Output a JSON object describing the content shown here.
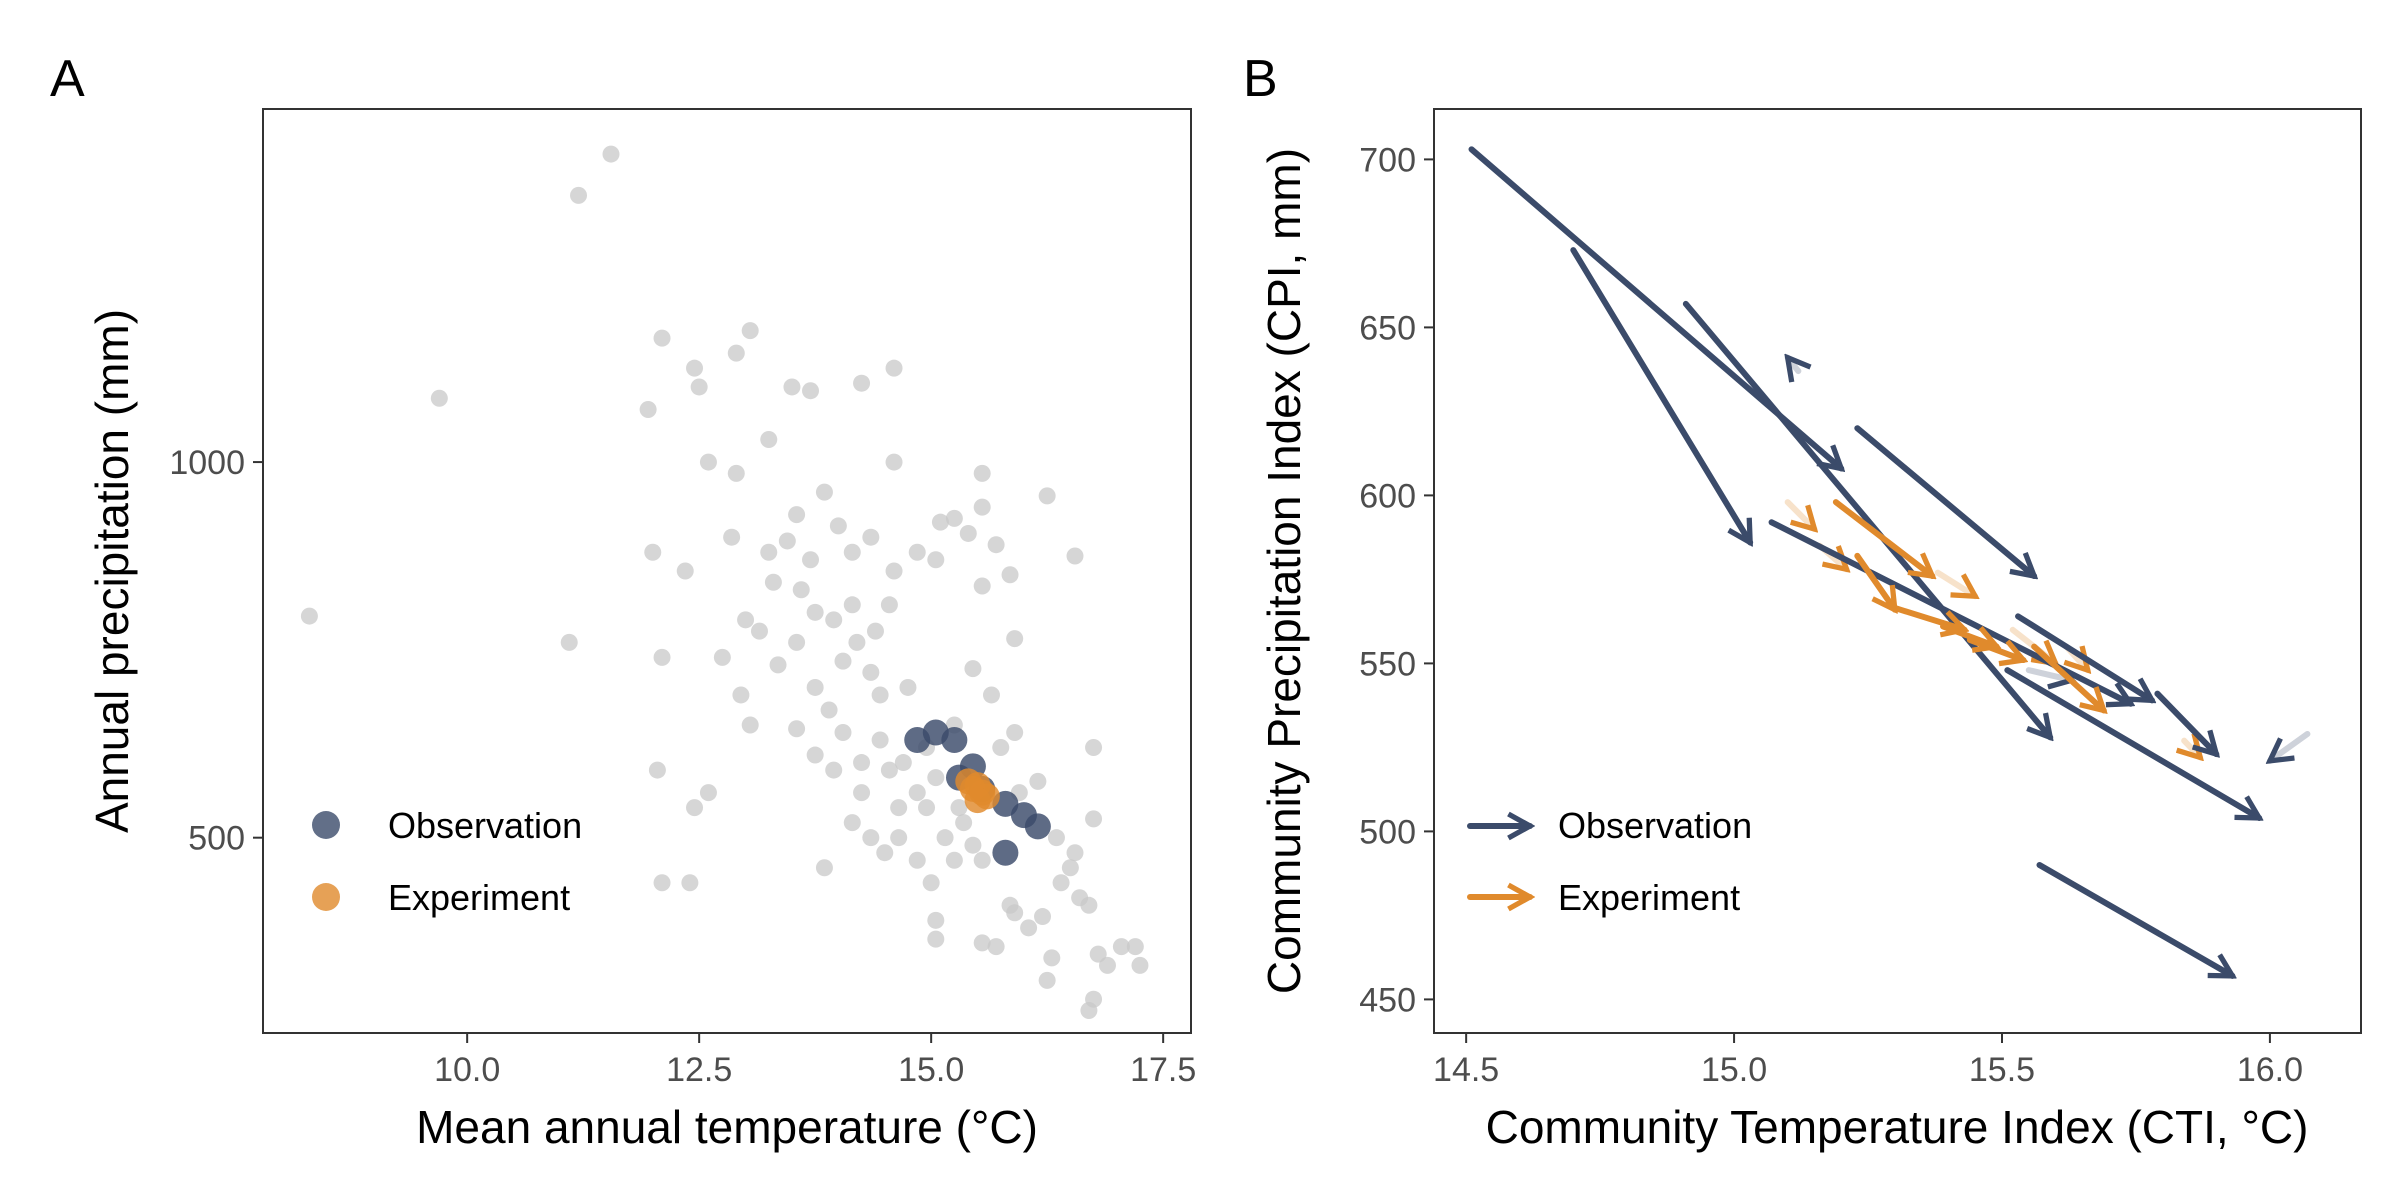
{
  "colors": {
    "observation": "#3B4B6A",
    "experiment": "#E08A2C",
    "background_points": "#C8C8C8"
  },
  "chart_data": [
    {
      "panel": "A",
      "type": "scatter",
      "xlabel": "Mean annual temperature (°C)",
      "ylabel": "Annual precipitation (mm)",
      "xlim": [
        7.8,
        17.8
      ],
      "ylim": [
        240,
        1470
      ],
      "x_ticks": [
        10.0,
        12.5,
        15.0,
        17.5
      ],
      "x_tick_labels": [
        "10.0",
        "12.5",
        "15.0",
        "17.5"
      ],
      "y_ticks": [
        500,
        1000
      ],
      "y_tick_labels": [
        "500",
        "1000"
      ],
      "grid": false,
      "legend": {
        "position": "bottom-left",
        "entries": [
          {
            "label": "Observation",
            "key": "observation"
          },
          {
            "label": "Experiment",
            "key": "experiment"
          }
        ]
      },
      "background_points": [
        [
          8.3,
          795
        ],
        [
          9.7,
          1085
        ],
        [
          11.2,
          1355
        ],
        [
          11.55,
          1410
        ],
        [
          11.1,
          760
        ],
        [
          11.95,
          1070
        ],
        [
          12.1,
          1165
        ],
        [
          12.45,
          1125
        ],
        [
          12.5,
          1100
        ],
        [
          12.9,
          1145
        ],
        [
          13.05,
          1175
        ],
        [
          13.25,
          1030
        ],
        [
          13.5,
          1100
        ],
        [
          13.7,
          1095
        ],
        [
          14.25,
          1105
        ],
        [
          14.6,
          1125
        ],
        [
          12.0,
          880
        ],
        [
          12.35,
          855
        ],
        [
          12.6,
          1000
        ],
        [
          12.9,
          985
        ],
        [
          12.1,
          740
        ],
        [
          12.05,
          590
        ],
        [
          12.1,
          440
        ],
        [
          12.4,
          440
        ],
        [
          12.45,
          540
        ],
        [
          12.6,
          560
        ],
        [
          12.95,
          690
        ],
        [
          13.05,
          650
        ],
        [
          13.15,
          775
        ],
        [
          13.3,
          840
        ],
        [
          13.45,
          895
        ],
        [
          13.55,
          930
        ],
        [
          13.7,
          870
        ],
        [
          13.85,
          960
        ],
        [
          14.0,
          915
        ],
        [
          14.15,
          880
        ],
        [
          14.35,
          900
        ],
        [
          14.6,
          1000
        ],
        [
          14.6,
          855
        ],
        [
          14.85,
          880
        ],
        [
          13.35,
          730
        ],
        [
          13.55,
          760
        ],
        [
          13.75,
          800
        ],
        [
          13.95,
          790
        ],
        [
          14.2,
          760
        ],
        [
          14.35,
          720
        ],
        [
          14.45,
          690
        ],
        [
          13.55,
          645
        ],
        [
          13.75,
          610
        ],
        [
          13.9,
          670
        ],
        [
          13.95,
          590
        ],
        [
          14.05,
          640
        ],
        [
          14.25,
          600
        ],
        [
          14.25,
          560
        ],
        [
          14.45,
          630
        ],
        [
          14.55,
          590
        ],
        [
          14.65,
          540
        ],
        [
          14.7,
          600
        ],
        [
          14.85,
          560
        ],
        [
          14.95,
          540
        ],
        [
          14.95,
          620
        ],
        [
          15.05,
          580
        ],
        [
          14.85,
          470
        ],
        [
          15.0,
          440
        ],
        [
          15.05,
          390
        ],
        [
          15.05,
          365
        ],
        [
          15.15,
          500
        ],
        [
          15.25,
          470
        ],
        [
          15.3,
          540
        ],
        [
          15.35,
          520
        ],
        [
          15.45,
          490
        ],
        [
          15.55,
          470
        ],
        [
          15.55,
          360
        ],
        [
          15.7,
          355
        ],
        [
          15.85,
          410
        ],
        [
          15.9,
          400
        ],
        [
          16.05,
          380
        ],
        [
          16.2,
          395
        ],
        [
          16.3,
          340
        ],
        [
          16.25,
          310
        ],
        [
          16.4,
          440
        ],
        [
          16.5,
          460
        ],
        [
          16.6,
          420
        ],
        [
          16.7,
          410
        ],
        [
          16.8,
          345
        ],
        [
          16.75,
          285
        ],
        [
          16.7,
          270
        ],
        [
          16.9,
          330
        ],
        [
          17.05,
          355
        ],
        [
          17.25,
          330
        ],
        [
          17.2,
          355
        ],
        [
          16.75,
          620
        ],
        [
          16.75,
          525
        ],
        [
          16.55,
          480
        ],
        [
          16.35,
          500
        ],
        [
          16.15,
          575
        ],
        [
          15.95,
          560
        ],
        [
          15.75,
          620
        ],
        [
          15.9,
          640
        ],
        [
          15.65,
          690
        ],
        [
          15.45,
          725
        ],
        [
          15.55,
          835
        ],
        [
          15.4,
          905
        ],
        [
          15.55,
          985
        ],
        [
          15.25,
          925
        ],
        [
          15.05,
          870
        ],
        [
          15.7,
          890
        ],
        [
          15.9,
          765
        ],
        [
          16.25,
          955
        ],
        [
          16.55,
          875
        ],
        [
          15.55,
          940
        ],
        [
          15.85,
          850
        ],
        [
          15.1,
          920
        ],
        [
          13.85,
          460
        ],
        [
          14.15,
          520
        ],
        [
          14.35,
          500
        ],
        [
          14.5,
          480
        ],
        [
          14.65,
          500
        ],
        [
          14.15,
          810
        ],
        [
          14.75,
          700
        ],
        [
          15.25,
          650
        ],
        [
          13.25,
          880
        ],
        [
          13.0,
          790
        ],
        [
          12.75,
          740
        ],
        [
          12.85,
          900
        ],
        [
          13.6,
          830
        ],
        [
          13.75,
          700
        ],
        [
          14.05,
          735
        ],
        [
          14.4,
          775
        ],
        [
          14.55,
          810
        ]
      ],
      "series": [
        {
          "name": "Observation",
          "key": "observation",
          "points": [
            [
              14.85,
              630
            ],
            [
              15.05,
              640
            ],
            [
              15.25,
              630
            ],
            [
              15.45,
              595
            ],
            [
              15.3,
              580
            ],
            [
              15.55,
              565
            ],
            [
              15.8,
              545
            ],
            [
              16.0,
              530
            ],
            [
              16.15,
              515
            ],
            [
              15.8,
              480
            ]
          ]
        },
        {
          "name": "Experiment",
          "key": "experiment",
          "points": [
            [
              15.4,
              575
            ],
            [
              15.45,
              565
            ],
            [
              15.5,
              570
            ],
            [
              15.55,
              560
            ],
            [
              15.6,
              555
            ],
            [
              15.5,
              550
            ]
          ]
        }
      ]
    },
    {
      "panel": "B",
      "type": "arrows",
      "xlabel": "Community Temperature Index (CTI, °C)",
      "ylabel": "Community Precipitation Index (CPI, mm)",
      "xlim": [
        14.44,
        16.17
      ],
      "ylim": [
        440,
        715
      ],
      "x_ticks": [
        14.5,
        15.0,
        15.5,
        16.0
      ],
      "x_tick_labels": [
        "14.5",
        "15.0",
        "15.5",
        "16.0"
      ],
      "y_ticks": [
        450,
        500,
        550,
        600,
        650,
        700
      ],
      "y_tick_labels": [
        "450",
        "500",
        "550",
        "600",
        "650",
        "700"
      ],
      "grid": false,
      "legend": {
        "position": "bottom-left",
        "entries": [
          {
            "label": "Observation",
            "key": "observation"
          },
          {
            "label": "Experiment",
            "key": "experiment"
          }
        ]
      },
      "series": [
        {
          "name": "Observation",
          "key": "observation",
          "arrows": [
            {
              "from": [
                14.51,
                703
              ],
              "to": [
                15.2,
                608
              ],
              "alpha": 1.0
            },
            {
              "from": [
                14.7,
                673
              ],
              "to": [
                15.03,
                586
              ],
              "alpha": 1.0
            },
            {
              "from": [
                14.91,
                657
              ],
              "to": [
                15.59,
                528
              ],
              "alpha": 1.0
            },
            {
              "from": [
                15.23,
                620
              ],
              "to": [
                15.56,
                576
              ],
              "alpha": 1.0
            },
            {
              "from": [
                15.07,
                592
              ],
              "to": [
                15.74,
                538
              ],
              "alpha": 1.0
            },
            {
              "from": [
                15.51,
                548
              ],
              "to": [
                15.98,
                504
              ],
              "alpha": 1.0
            },
            {
              "from": [
                15.53,
                564
              ],
              "to": [
                15.78,
                539
              ],
              "alpha": 1.0
            },
            {
              "from": [
                15.79,
                541
              ],
              "to": [
                15.9,
                523
              ],
              "alpha": 1.0
            },
            {
              "from": [
                15.57,
                490
              ],
              "to": [
                15.93,
                457
              ],
              "alpha": 1.0
            },
            {
              "from": [
                15.12,
                637
              ],
              "to": [
                15.1,
                641
              ],
              "alpha": 0.25
            },
            {
              "from": [
                16.07,
                529
              ],
              "to": [
                16.0,
                521
              ],
              "alpha": 0.25
            },
            {
              "from": [
                15.55,
                548
              ],
              "to": [
                15.63,
                545
              ],
              "alpha": 0.25
            }
          ]
        },
        {
          "name": "Experiment",
          "key": "experiment",
          "arrows": [
            {
              "from": [
                15.19,
                598
              ],
              "to": [
                15.37,
                576
              ],
              "alpha": 1.0
            },
            {
              "from": [
                15.23,
                582
              ],
              "to": [
                15.3,
                566
              ],
              "alpha": 1.0
            },
            {
              "from": [
                15.29,
                567
              ],
              "to": [
                15.43,
                560
              ],
              "alpha": 1.0
            },
            {
              "from": [
                15.39,
                561
              ],
              "to": [
                15.49,
                555
              ],
              "alpha": 1.0
            },
            {
              "from": [
                15.44,
                557
              ],
              "to": [
                15.54,
                551
              ],
              "alpha": 1.0
            },
            {
              "from": [
                15.56,
                555
              ],
              "to": [
                15.69,
                536
              ],
              "alpha": 1.0
            },
            {
              "from": [
                15.1,
                598
              ],
              "to": [
                15.15,
                590
              ],
              "alpha": 0.25
            },
            {
              "from": [
                15.16,
                585
              ],
              "to": [
                15.21,
                578
              ],
              "alpha": 0.25
            },
            {
              "from": [
                15.38,
                577
              ],
              "to": [
                15.45,
                570
              ],
              "alpha": 0.25
            },
            {
              "from": [
                15.52,
                560
              ],
              "to": [
                15.6,
                550
              ],
              "alpha": 0.25
            },
            {
              "from": [
                15.62,
                555
              ],
              "to": [
                15.66,
                548
              ],
              "alpha": 0.25
            },
            {
              "from": [
                15.84,
                527
              ],
              "to": [
                15.87,
                522
              ],
              "alpha": 0.25
            }
          ]
        }
      ]
    }
  ]
}
